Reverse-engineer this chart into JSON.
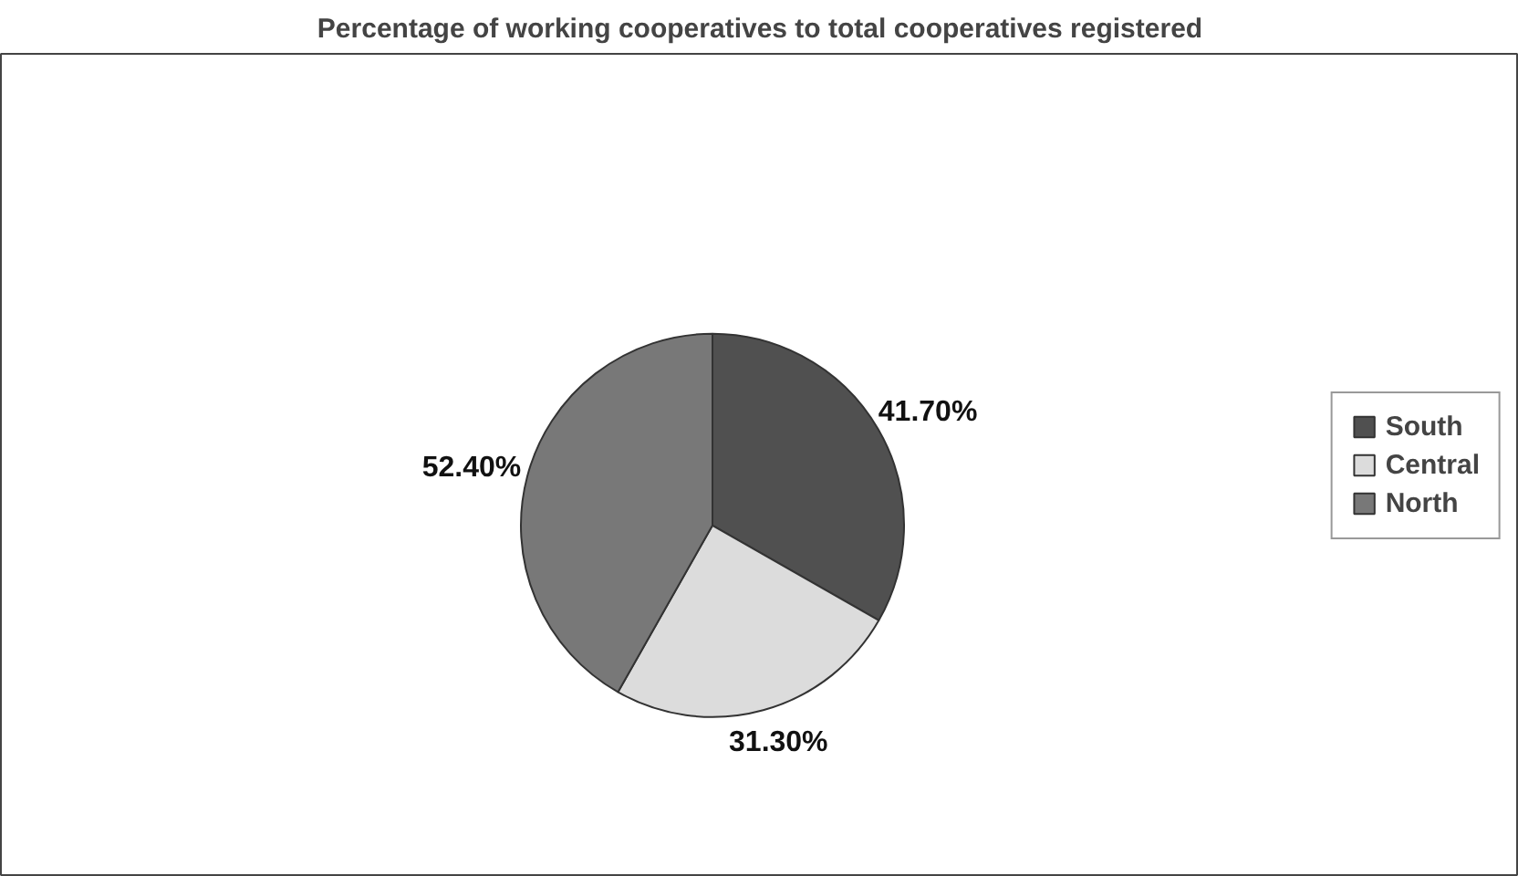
{
  "chart_data": {
    "type": "pie",
    "title": "Percentage of working cooperatives to total cooperatives registered",
    "categories": [
      "South",
      "Central",
      "North"
    ],
    "values": [
      41.7,
      31.3,
      52.4
    ],
    "value_labels": [
      "41.70%",
      "31.30%",
      "52.40%"
    ],
    "colors": [
      "#505050",
      "#dcdcdc",
      "#787878"
    ],
    "legend": "right"
  }
}
